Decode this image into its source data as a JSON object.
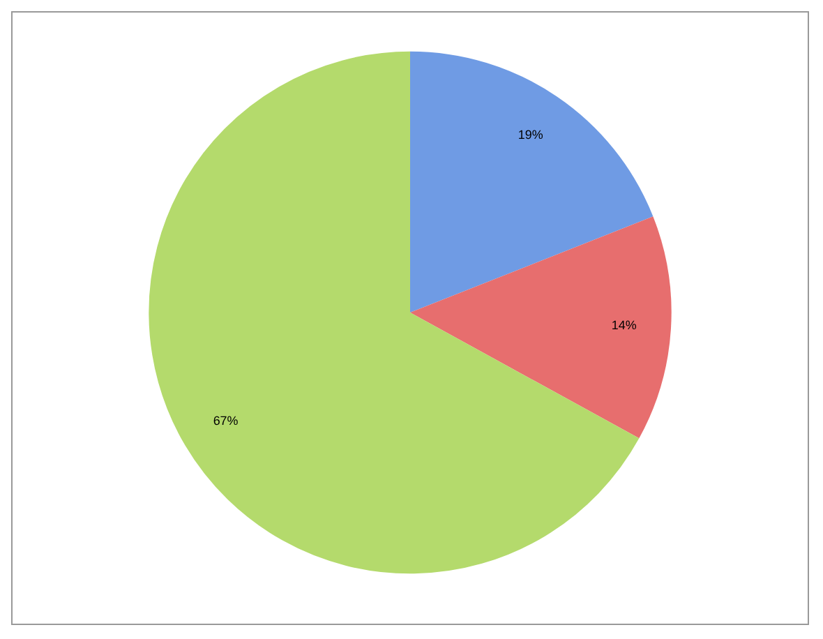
{
  "chart_data": {
    "type": "pie",
    "categories": [
      null,
      null,
      null
    ],
    "values": [
      19,
      14,
      67
    ],
    "colors": [
      "#6f9be4",
      "#e76e6e",
      "#b4da6c"
    ],
    "value_labels": [
      "19%",
      "14%",
      "67%"
    ],
    "legend": false
  }
}
